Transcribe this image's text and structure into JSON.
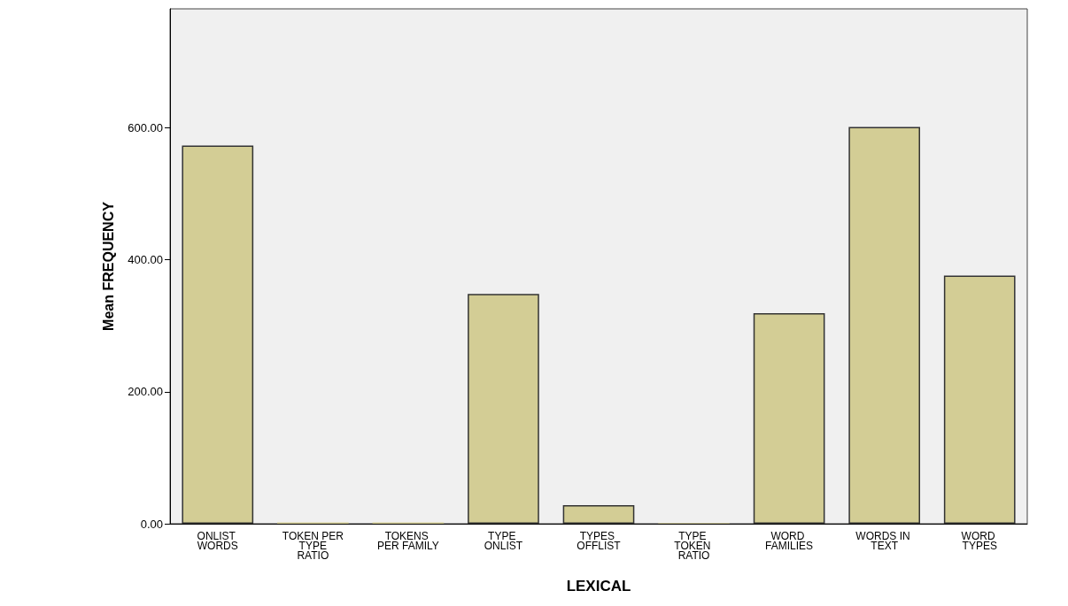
{
  "chart_data": {
    "type": "bar",
    "xlabel": "LEXICAL",
    "ylabel": "Mean FREQUENCY",
    "categories": [
      "ONLIST WORDS",
      "TOKEN PER TYPE RATIO",
      "TOKENS PER FAMILY",
      "TYPE ONLIST",
      "TYPES OFFLIST",
      "TYPE TOKEN RATIO",
      "WORD FAMILIES",
      "WORDS IN TEXT",
      "WORD TYPES"
    ],
    "values": [
      573,
      2,
      2,
      348,
      28,
      1,
      319,
      601,
      376
    ],
    "color": "#d3cd95",
    "ylim": [
      0,
      780
    ],
    "yticks": [
      {
        "value": 0,
        "label": "0.00"
      },
      {
        "value": 200,
        "label": "200.00"
      },
      {
        "value": 400,
        "label": "400.00"
      },
      {
        "value": 600,
        "label": "600.00"
      }
    ],
    "grid": false
  }
}
